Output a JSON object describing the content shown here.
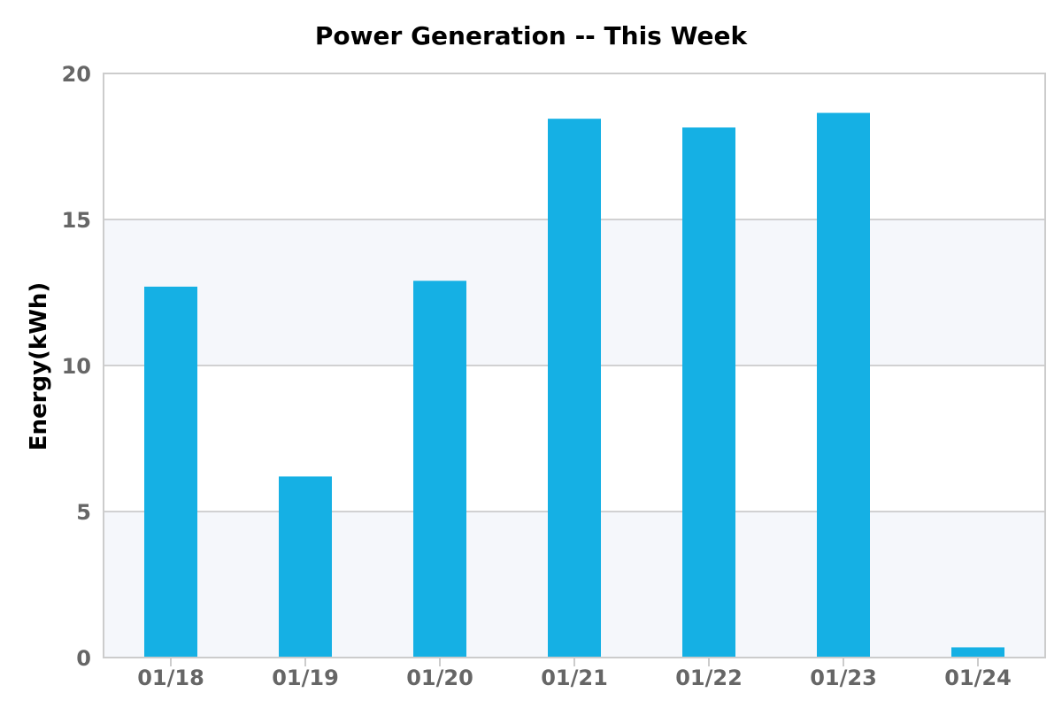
{
  "chart_data": {
    "type": "bar",
    "title": "Power Generation -- This Week",
    "xlabel": "",
    "ylabel": "Energy(kWh)",
    "categories": [
      "01/18",
      "01/19",
      "01/20",
      "01/21",
      "01/22",
      "01/23",
      "01/24"
    ],
    "values": [
      12.7,
      6.2,
      12.9,
      18.45,
      18.15,
      18.65,
      0.35
    ],
    "ylim": [
      0,
      20
    ],
    "yticks": [
      0,
      5,
      10,
      15,
      20
    ],
    "grid": true,
    "legend": "none",
    "colors": {
      "bar": "#15b0e4",
      "band_fill": "#f5f7fb",
      "grid": "#c4c4c4",
      "axis": "#cccccc",
      "tick_text": "#666666",
      "title_text": "#000000"
    }
  }
}
